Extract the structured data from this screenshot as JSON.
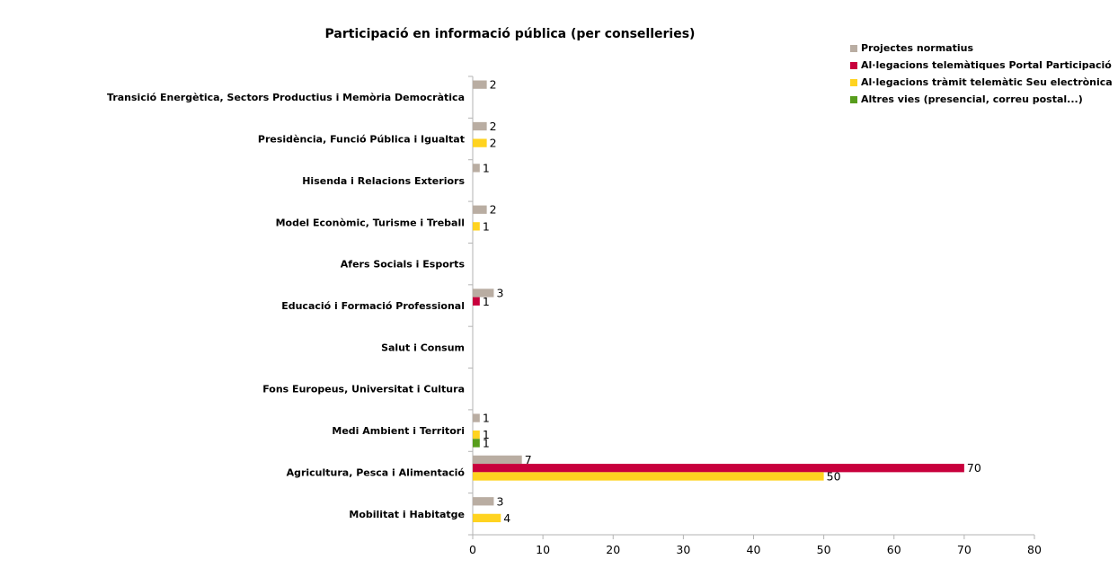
{
  "chart_data": {
    "type": "bar",
    "orientation": "horizontal",
    "title": "Participació en informació pública (per conselleries)",
    "xlabel": "",
    "ylabel": "",
    "xlim": [
      0,
      80
    ],
    "xticks": [
      0,
      10,
      20,
      30,
      40,
      50,
      60,
      70,
      80
    ],
    "grid": false,
    "legend_position": "top-right",
    "categories": [
      "Transició Energètica, Sectors Productius i Memòria Democràtica",
      "Presidència, Funció Pública i Igualtat",
      "Hisenda i Relacions Exteriors",
      "Model Econòmic, Turisme i Treball",
      "Afers Socials i Esports",
      "Educació i Formació Professional",
      "Salut i Consum",
      "Fons Europeus, Universitat i Cultura",
      "Medi Ambient i Territori",
      "Agricultura, Pesca i Alimentació",
      "Mobilitat i Habitatge"
    ],
    "series": [
      {
        "name": "Projectes normatius",
        "color": "#b9ada2",
        "values": [
          2,
          2,
          1,
          2,
          null,
          3,
          null,
          null,
          1,
          7,
          3
        ]
      },
      {
        "name": "Al·legacions telemàtiques Portal Participació",
        "color": "#c8003c",
        "values": [
          null,
          null,
          null,
          null,
          null,
          1,
          null,
          null,
          null,
          70,
          null
        ]
      },
      {
        "name": "Al·legacions tràmit telemàtic Seu electrònica",
        "color": "#ffd320",
        "values": [
          null,
          2,
          null,
          1,
          null,
          null,
          null,
          null,
          1,
          50,
          4
        ]
      },
      {
        "name": "Altres vies (presencial, correu postal...)",
        "color": "#579d1c",
        "values": [
          null,
          null,
          null,
          null,
          null,
          null,
          null,
          null,
          1,
          null,
          null
        ]
      }
    ]
  }
}
